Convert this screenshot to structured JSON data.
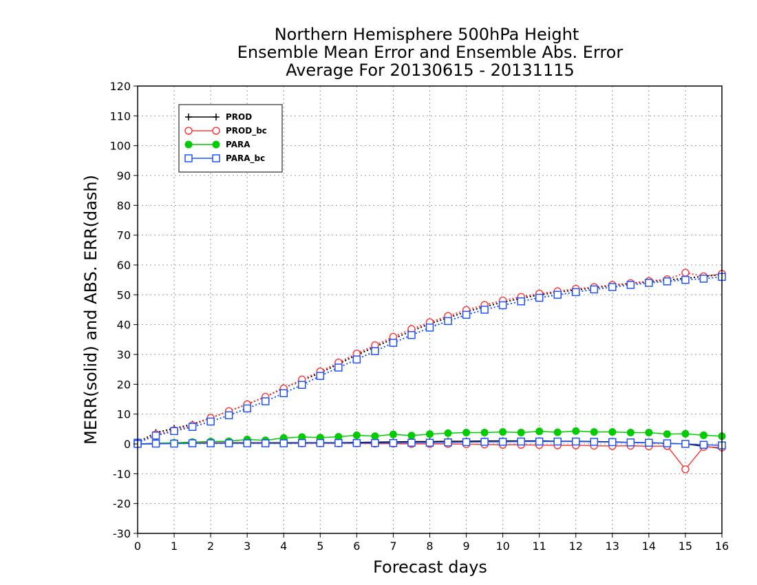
{
  "chart_data": {
    "type": "line",
    "title_lines": [
      "Northern Hemisphere 500hPa Height",
      "Ensemble Mean Error and Ensemble Abs. Error",
      "Average For 20130615 - 20131115"
    ],
    "xlabel": "Forecast days",
    "ylabel": "MERR(solid) and ABS. ERR(dash)",
    "xlim": [
      0,
      16
    ],
    "ylim": [
      -30,
      120
    ],
    "xticks": [
      0,
      1,
      2,
      3,
      4,
      5,
      6,
      7,
      8,
      9,
      10,
      11,
      12,
      13,
      14,
      15,
      16
    ],
    "yticks": [
      -30,
      -20,
      -10,
      0,
      10,
      20,
      30,
      40,
      50,
      60,
      70,
      80,
      90,
      100,
      110,
      120
    ],
    "grid": true,
    "legend_position": "top-left",
    "x": [
      0,
      0.5,
      1,
      1.5,
      2,
      2.5,
      3,
      3.5,
      4,
      4.5,
      5,
      5.5,
      6,
      6.5,
      7,
      7.5,
      8,
      8.5,
      9,
      9.5,
      10,
      10.5,
      11,
      11.5,
      12,
      12.5,
      13,
      13.5,
      14,
      14.5,
      15,
      15.5,
      16
    ],
    "series": [
      {
        "name": "PROD",
        "color": "#000000",
        "marker": "plus",
        "merr": [
          0,
          0,
          0.3,
          0.4,
          0.4,
          0.4,
          0.4,
          0.4,
          0.4,
          0.4,
          0.4,
          0.4,
          0.5,
          0.6,
          0.7,
          0.8,
          0.8,
          0.9,
          0.9,
          1.0,
          1.0,
          1.0,
          1.0,
          0.9,
          0.9,
          0.8,
          0.7,
          0.5,
          0.4,
          0.2,
          0,
          -0.8,
          -1.5
        ],
        "abs_err": [
          0.5,
          3.8,
          5.2,
          6.6,
          8.7,
          11.0,
          13.3,
          15.8,
          18.8,
          21.3,
          23.8,
          26.8,
          29.8,
          32.5,
          35.3,
          37.8,
          40.3,
          42.3,
          44.3,
          46.0,
          47.5,
          48.8,
          50.0,
          50.9,
          51.6,
          52.4,
          53.1,
          53.8,
          54.4,
          55.0,
          55.5,
          56.2,
          56.8
        ]
      },
      {
        "name": "PROD_bc",
        "color": "#ff3b3b",
        "marker": "circle",
        "merr": [
          0,
          0.2,
          0.3,
          0.4,
          0.4,
          0.3,
          0.3,
          0.3,
          0.2,
          0.2,
          0.2,
          0.2,
          0.2,
          0.1,
          0.1,
          0,
          0,
          0,
          -0.1,
          -0.2,
          -0.3,
          -0.3,
          -0.4,
          -0.5,
          -0.5,
          -0.6,
          -0.7,
          -0.6,
          -0.8,
          -0.7,
          -8.5,
          -1.0,
          -1.2
        ],
        "abs_err": [
          0.4,
          3.2,
          4.6,
          6.2,
          8.7,
          11.0,
          13.3,
          15.8,
          18.6,
          21.6,
          24.3,
          27.3,
          30.3,
          33.1,
          35.9,
          38.5,
          40.8,
          42.9,
          44.9,
          46.6,
          48.1,
          49.3,
          50.4,
          51.2,
          52.0,
          52.6,
          53.3,
          53.9,
          54.6,
          55.2,
          57.4,
          56.2,
          57.0
        ]
      },
      {
        "name": "PARA",
        "color": "#00cc00",
        "marker": "filled-circle",
        "merr": [
          0,
          0.2,
          0.4,
          0.6,
          0.8,
          0.9,
          1.5,
          1.2,
          2.0,
          2.3,
          2.1,
          2.4,
          2.9,
          2.6,
          3.2,
          2.8,
          3.3,
          3.6,
          3.8,
          3.8,
          4.0,
          3.8,
          4.2,
          3.9,
          4.3,
          4.0,
          4.0,
          3.8,
          3.8,
          3.3,
          3.4,
          2.9,
          2.6
        ]
      },
      {
        "name": "PARA_bc",
        "color": "#1e50ff",
        "marker": "square",
        "merr": [
          0,
          0.1,
          0.1,
          0.2,
          0.2,
          0.2,
          0.2,
          0.2,
          0.2,
          0.3,
          0.3,
          0.3,
          0.3,
          0.3,
          0.3,
          0.4,
          0.4,
          0.5,
          0.6,
          0.7,
          0.7,
          0.8,
          0.8,
          0.8,
          0.8,
          0.7,
          0.6,
          0.5,
          0.4,
          0.2,
          0,
          -0.3,
          -0.5
        ],
        "abs_err": [
          0.4,
          2.8,
          4.3,
          5.7,
          7.5,
          9.6,
          11.9,
          14.3,
          17.0,
          19.8,
          22.8,
          25.6,
          28.3,
          31.1,
          33.9,
          36.5,
          39.0,
          41.2,
          43.3,
          45.0,
          46.5,
          47.8,
          49.0,
          50.0,
          50.9,
          51.8,
          52.6,
          53.3,
          54.0,
          54.5,
          55.0,
          55.4,
          56.0
        ]
      }
    ]
  }
}
